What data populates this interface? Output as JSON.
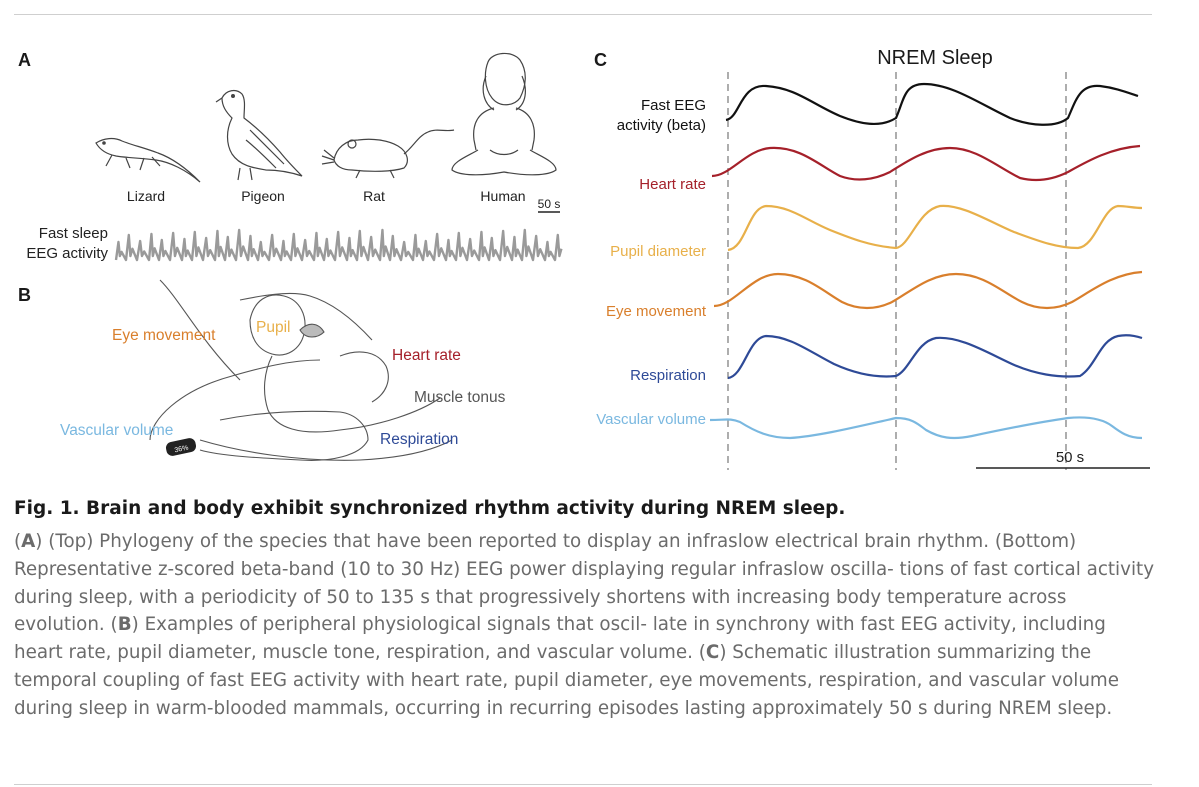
{
  "panelA": {
    "label": "A",
    "species": [
      "Lizard",
      "Pigeon",
      "Rat",
      "Human"
    ],
    "scale_label": "50 s",
    "trace_label_line1": "Fast sleep",
    "trace_label_line2": "EEG activity"
  },
  "panelB": {
    "label": "B",
    "labels": {
      "eye": "Eye movement",
      "pupil": "Pupil",
      "heart": "Heart rate",
      "muscle": "Muscle tonus",
      "vascular": "Vascular volume",
      "respiration": "Respiration"
    }
  },
  "panelC": {
    "label": "C",
    "title": "NREM Sleep",
    "scale_label": "50 s",
    "traces": [
      {
        "line1": "Fast EEG",
        "line2": "activity  (beta)",
        "color": "#111111"
      },
      {
        "line1": "Heart rate",
        "color": "#a5202a"
      },
      {
        "line1": "Pupil diameter",
        "color": "#e8b04a"
      },
      {
        "line1": "Eye movement",
        "color": "#d97f2c"
      },
      {
        "line1": "Respiration",
        "color": "#2e4a97"
      },
      {
        "line1": "Vascular volume",
        "color": "#7ab8e0"
      }
    ]
  },
  "caption": {
    "fig_label": "Fig. 1.",
    "title": "Brain and body exhibit synchronized rhythm activity during NREM sleep.",
    "A": "A",
    "a_text": "(Top) Phylogeny of the species that have been reported to display an infraslow electrical brain rhythm. (Bottom) Representative z-scored beta-band (10 to 30 Hz) EEG power displaying regular infraslow oscilla- tions of fast cortical activity during sleep, with a periodicity of 50 to 135 s that progressively shortens with increasing body temperature across evolution.",
    "B": "B",
    "b_text": "Examples of peripheral physiological signals that oscil- late in synchrony with fast EEG activity, including heart rate, pupil diameter, muscle tone, respiration, and vascular volume.",
    "C": "C",
    "c_text": "Schematic illustration summarizing the temporal coupling of fast EEG activity with heart rate, pupil diameter, eye movements, respiration, and vascular volume during sleep in warm-blooded mammals, occurring in recurring episodes lasting approximately 50 s during NREM sleep."
  }
}
